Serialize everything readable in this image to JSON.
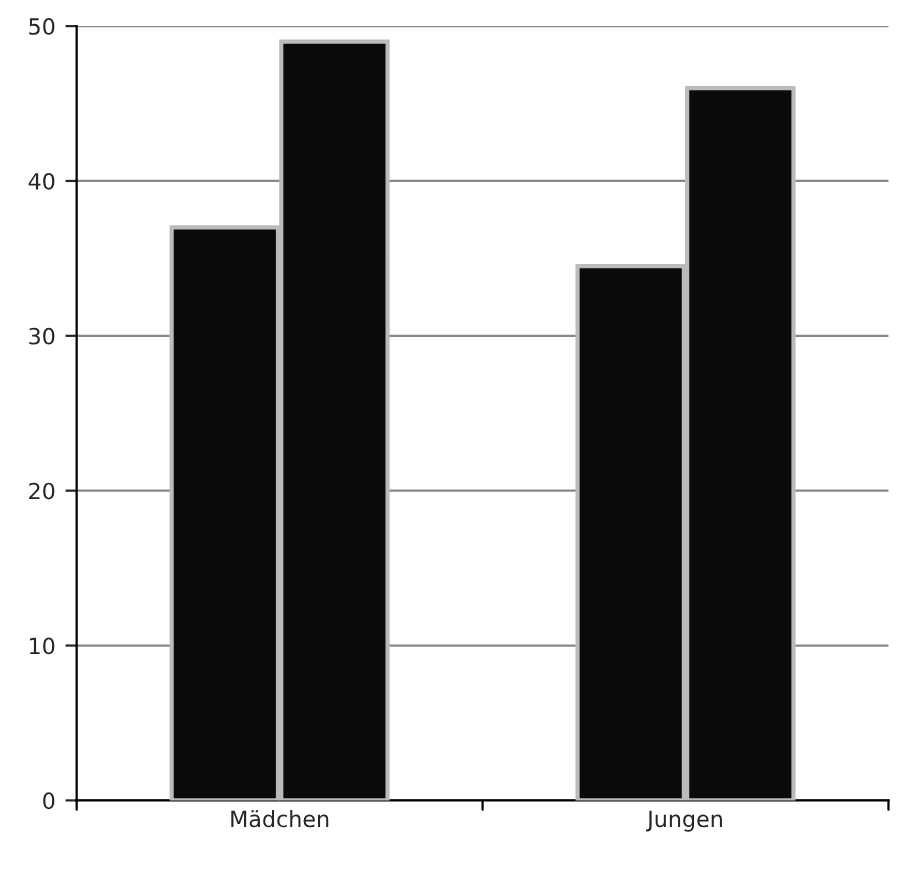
{
  "chart_data": {
    "type": "bar",
    "categories": [
      "Mädchen",
      "Jungen"
    ],
    "series": [
      {
        "color": "#0a0a0a",
        "values": [
          37,
          34.5
        ]
      },
      {
        "color": "#0a0a0a",
        "values": [
          49,
          46
        ]
      }
    ],
    "ylim": [
      0,
      50
    ],
    "yticks": [
      0,
      10,
      20,
      30,
      40,
      50
    ],
    "grid": "y"
  }
}
